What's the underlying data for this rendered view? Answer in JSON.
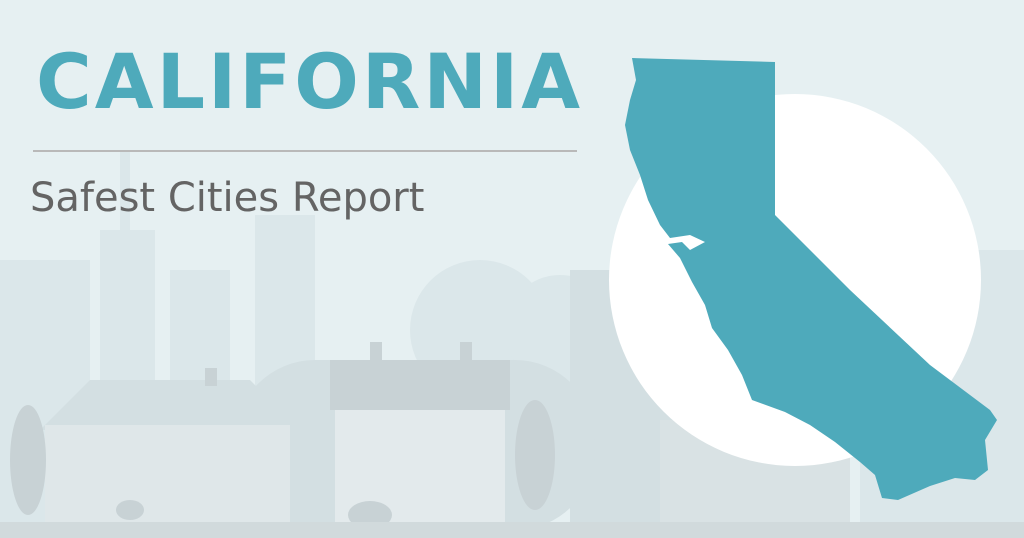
{
  "banner": {
    "title": "CALIFORNIA",
    "subtitle": "Safest Cities Report"
  },
  "colors": {
    "accent": "#4eaabb",
    "subtitle": "#646464",
    "background": "#e6f0f2",
    "buildings": "#d3dfe2",
    "houses": "#c8d2d5"
  },
  "icons": [
    "california-map-icon",
    "city-skyline-illustration",
    "houses-illustration",
    "trees-illustration"
  ]
}
